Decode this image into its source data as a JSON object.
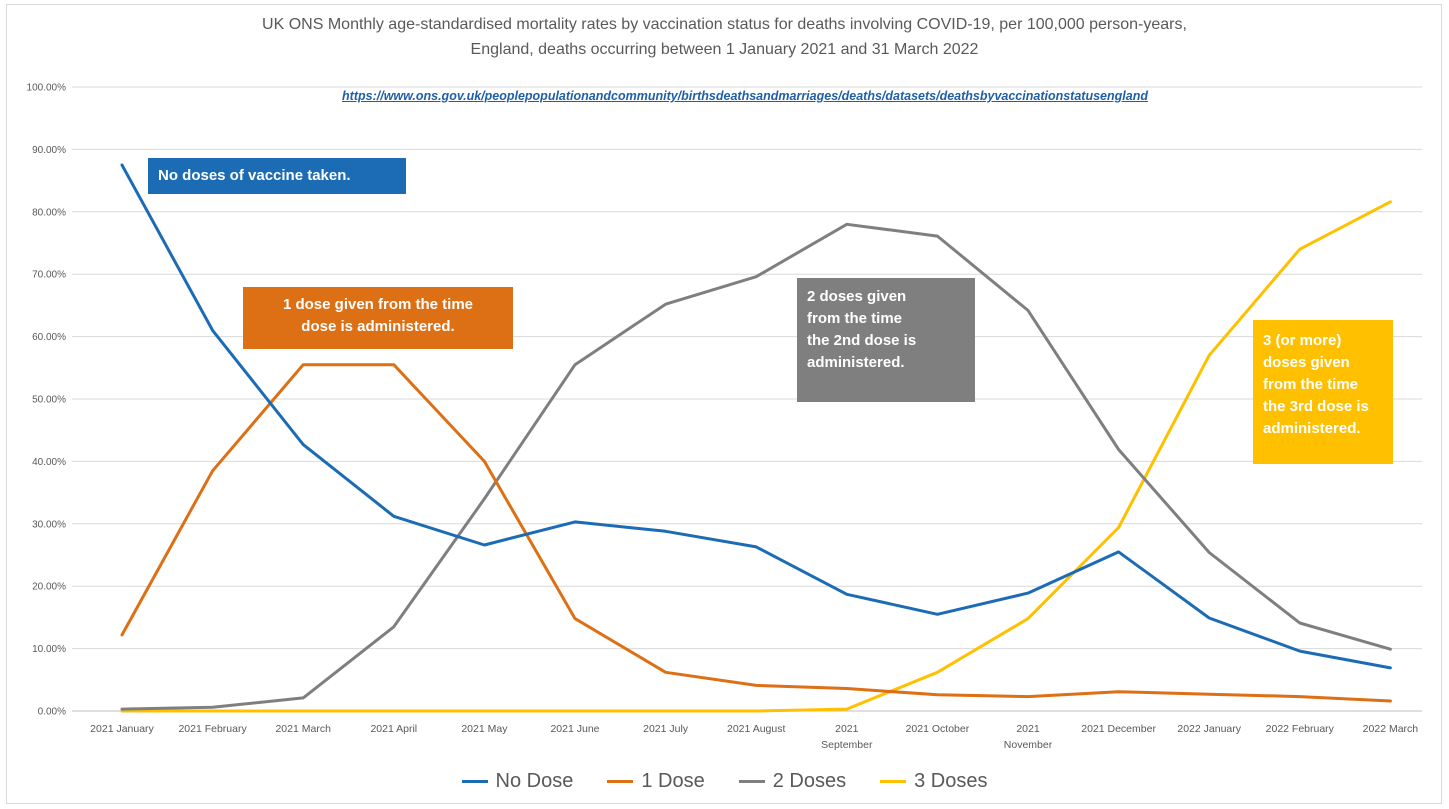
{
  "title_lines": [
    "UK ONS Monthly age-standardised mortality rates by vaccination status for deaths involving COVID-19, per 100,000 person-years,",
    "England, deaths occurring between 1 January 2021 and 31 March 2022"
  ],
  "source_link": "https://www.ons.gov.uk/peoplepopulationandcommunity/birthsdeathsandmarriages/deaths/datasets/deathsbyvaccinationstatusengland",
  "callouts": {
    "no_dose": [
      "No doses of vaccine taken."
    ],
    "one_dose": [
      "1 dose given from the time",
      "dose is administered."
    ],
    "two_doses": [
      "2 doses given",
      "from the time",
      "the 2nd dose is",
      "administered."
    ],
    "three_doses": [
      "3 (or more)",
      "doses given",
      "from the time",
      "the 3rd dose is",
      "administered."
    ]
  },
  "colors": {
    "no_dose": "#1c6bb5",
    "one_dose": "#dd6f14",
    "two_doses": "#7f7f7f",
    "three_doses": "#ffc000",
    "grid": "#d9d9d9",
    "tick_text": "#595959"
  },
  "chart_data": {
    "type": "line",
    "title": "UK ONS Monthly age-standardised mortality rates by vaccination status for deaths involving COVID-19, per 100,000 person-years, England, deaths occurring between 1 January 2021 and 31 March 2022",
    "xlabel": "",
    "ylabel": "",
    "ylim": [
      0,
      100
    ],
    "grid": true,
    "legend_position": "bottom",
    "y_ticks": [
      "0.00%",
      "10.00%",
      "20.00%",
      "30.00%",
      "40.00%",
      "50.00%",
      "60.00%",
      "70.00%",
      "80.00%",
      "90.00%",
      "100.00%"
    ],
    "categories": [
      [
        "2021 January"
      ],
      [
        "2021 February"
      ],
      [
        "2021 March"
      ],
      [
        "2021 April"
      ],
      [
        "2021 May"
      ],
      [
        "2021 June"
      ],
      [
        "2021 July"
      ],
      [
        "2021 August"
      ],
      [
        "2021",
        "September"
      ],
      [
        "2021 October"
      ],
      [
        "2021",
        "November"
      ],
      [
        "2021 December"
      ],
      [
        "2022 January"
      ],
      [
        "2022 February"
      ],
      [
        "2022 March"
      ]
    ],
    "series": [
      {
        "name": "No Dose",
        "color": "#1c6bb5",
        "values": [
          87.5,
          61.0,
          42.7,
          31.2,
          26.6,
          30.3,
          28.8,
          26.3,
          18.7,
          15.5,
          18.9,
          25.5,
          14.9,
          9.6,
          6.9
        ]
      },
      {
        "name": "1 Dose",
        "color": "#dd6f14",
        "values": [
          12.2,
          38.5,
          55.5,
          55.5,
          40.0,
          14.8,
          6.2,
          4.1,
          3.6,
          2.6,
          2.3,
          3.1,
          2.7,
          2.3,
          1.6
        ]
      },
      {
        "name": "2 Doses",
        "color": "#7f7f7f",
        "values": [
          0.3,
          0.6,
          2.1,
          13.5,
          34.0,
          55.5,
          65.2,
          69.6,
          78.0,
          76.1,
          64.2,
          41.9,
          25.4,
          14.1,
          9.9
        ]
      },
      {
        "name": "3 Doses",
        "color": "#ffc000",
        "values": [
          0,
          0,
          0,
          0,
          0,
          0,
          0,
          0,
          0.3,
          6.2,
          14.8,
          29.4,
          57.0,
          74.0,
          81.6
        ]
      }
    ]
  }
}
